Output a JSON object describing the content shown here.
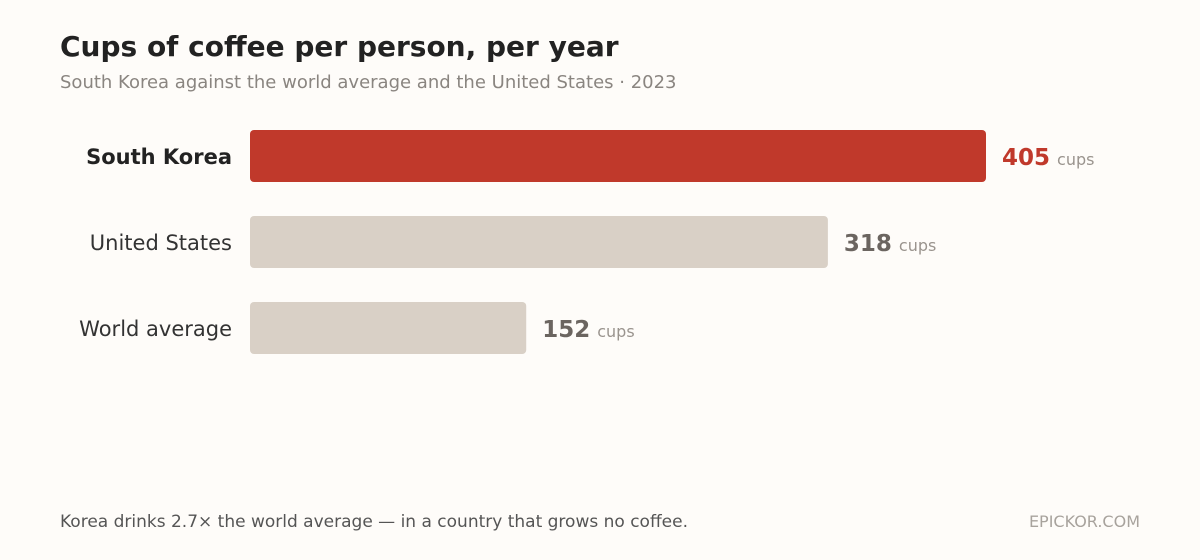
{
  "chart_data": {
    "type": "bar",
    "orientation": "horizontal",
    "title": "Cups of coffee per person, per year",
    "subtitle": "South Korea against the world average and the United States · 2023",
    "categories": [
      "South Korea",
      "United States",
      "World average"
    ],
    "values": [
      405,
      318,
      152
    ],
    "unit": "cups",
    "xlim": [
      0,
      405
    ],
    "grid": false,
    "highlight": "South Korea"
  },
  "colors": {
    "highlight_bar": "#c0392b",
    "highlight_value": "#c0392b",
    "bar": "#d9d0c6",
    "value": "#6b6560",
    "label_highlight": "#222222",
    "label": "#333333",
    "unit": "#9a948e"
  },
  "footer": {
    "note": "Korea drinks 2.7× the world average — in a country that grows no coffee.",
    "brand": "EPICKOR.COM"
  }
}
